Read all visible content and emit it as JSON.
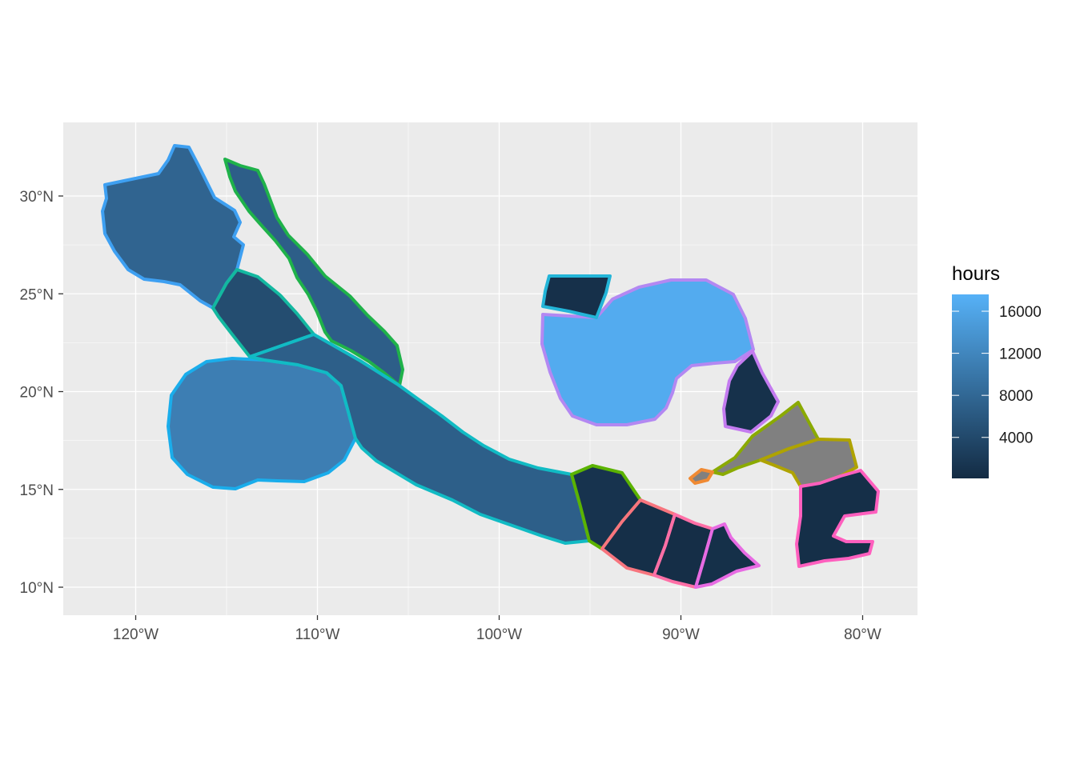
{
  "map": {
    "x_axis": {
      "ticks": [
        {
          "value": -120,
          "label": "120°W"
        },
        {
          "value": -110,
          "label": "110°W"
        },
        {
          "value": -100,
          "label": "100°W"
        },
        {
          "value": -90,
          "label": "90°W"
        },
        {
          "value": -80,
          "label": "80°W"
        }
      ]
    },
    "y_axis": {
      "ticks": [
        {
          "value": 10,
          "label": "10°N"
        },
        {
          "value": 15,
          "label": "15°N"
        },
        {
          "value": 20,
          "label": "20°N"
        },
        {
          "value": 25,
          "label": "25°N"
        },
        {
          "value": 30,
          "label": "30°N"
        }
      ]
    },
    "background_color": "#EBEBEB",
    "grid": true
  },
  "legend": {
    "title": "hours",
    "placement": "right",
    "type": "continuous color bar",
    "range": [
      100,
      17600
    ],
    "low_color": "#132B43",
    "high_color": "#56B1F7",
    "na_color": "#808080",
    "ticks": [
      {
        "value": 4000,
        "label": "4000"
      },
      {
        "value": 8000,
        "label": "8000"
      },
      {
        "value": 12000,
        "label": "12000"
      },
      {
        "value": 16000,
        "label": "16000"
      }
    ]
  },
  "regions": [
    {
      "id": "baja-pacific",
      "hours": 7600,
      "outline_color": "#3EA0F2"
    },
    {
      "id": "gulf-of-california",
      "hours": 6800,
      "outline_color": "#1FB24A"
    },
    {
      "id": "baja-south",
      "hours": 4500,
      "outline_color": "#13B8A0"
    },
    {
      "id": "revillagigedo",
      "hours": 11000,
      "outline_color": "#1AADEB"
    },
    {
      "id": "mexico-pacific",
      "hours": 6900,
      "outline_color": "#11BBC4"
    },
    {
      "id": "gulf-of-mexico",
      "hours": 16800,
      "outline_color": "#B388F2"
    },
    {
      "id": "mexico-gulf-nw",
      "hours": 800,
      "outline_color": "#23B5D8"
    },
    {
      "id": "yucatan-caribbean",
      "hours": 900,
      "outline_color": "#C47BF0"
    },
    {
      "id": "gulf-of-tehuantepec",
      "hours": 1200,
      "outline_color": "#5BB300"
    },
    {
      "id": "guatemala-pacific",
      "hours": 600,
      "outline_color": "#F7757E"
    },
    {
      "id": "el-salvador-pacific",
      "hours": 500,
      "outline_color": "#FF6FA6"
    },
    {
      "id": "nicaragua-pacific",
      "hours": 700,
      "outline_color": "#E76BE3"
    },
    {
      "id": "honduras-caribbean",
      "hours": null,
      "outline_color": "#8AAA00"
    },
    {
      "id": "nicaragua-caribbean",
      "hours": null,
      "outline_color": "#AFA300"
    },
    {
      "id": "gulf-of-fonseca",
      "hours": null,
      "outline_color": "#F08A33"
    },
    {
      "id": "western-caribbean",
      "hours": 600,
      "outline_color": "#FF5FBE"
    }
  ]
}
